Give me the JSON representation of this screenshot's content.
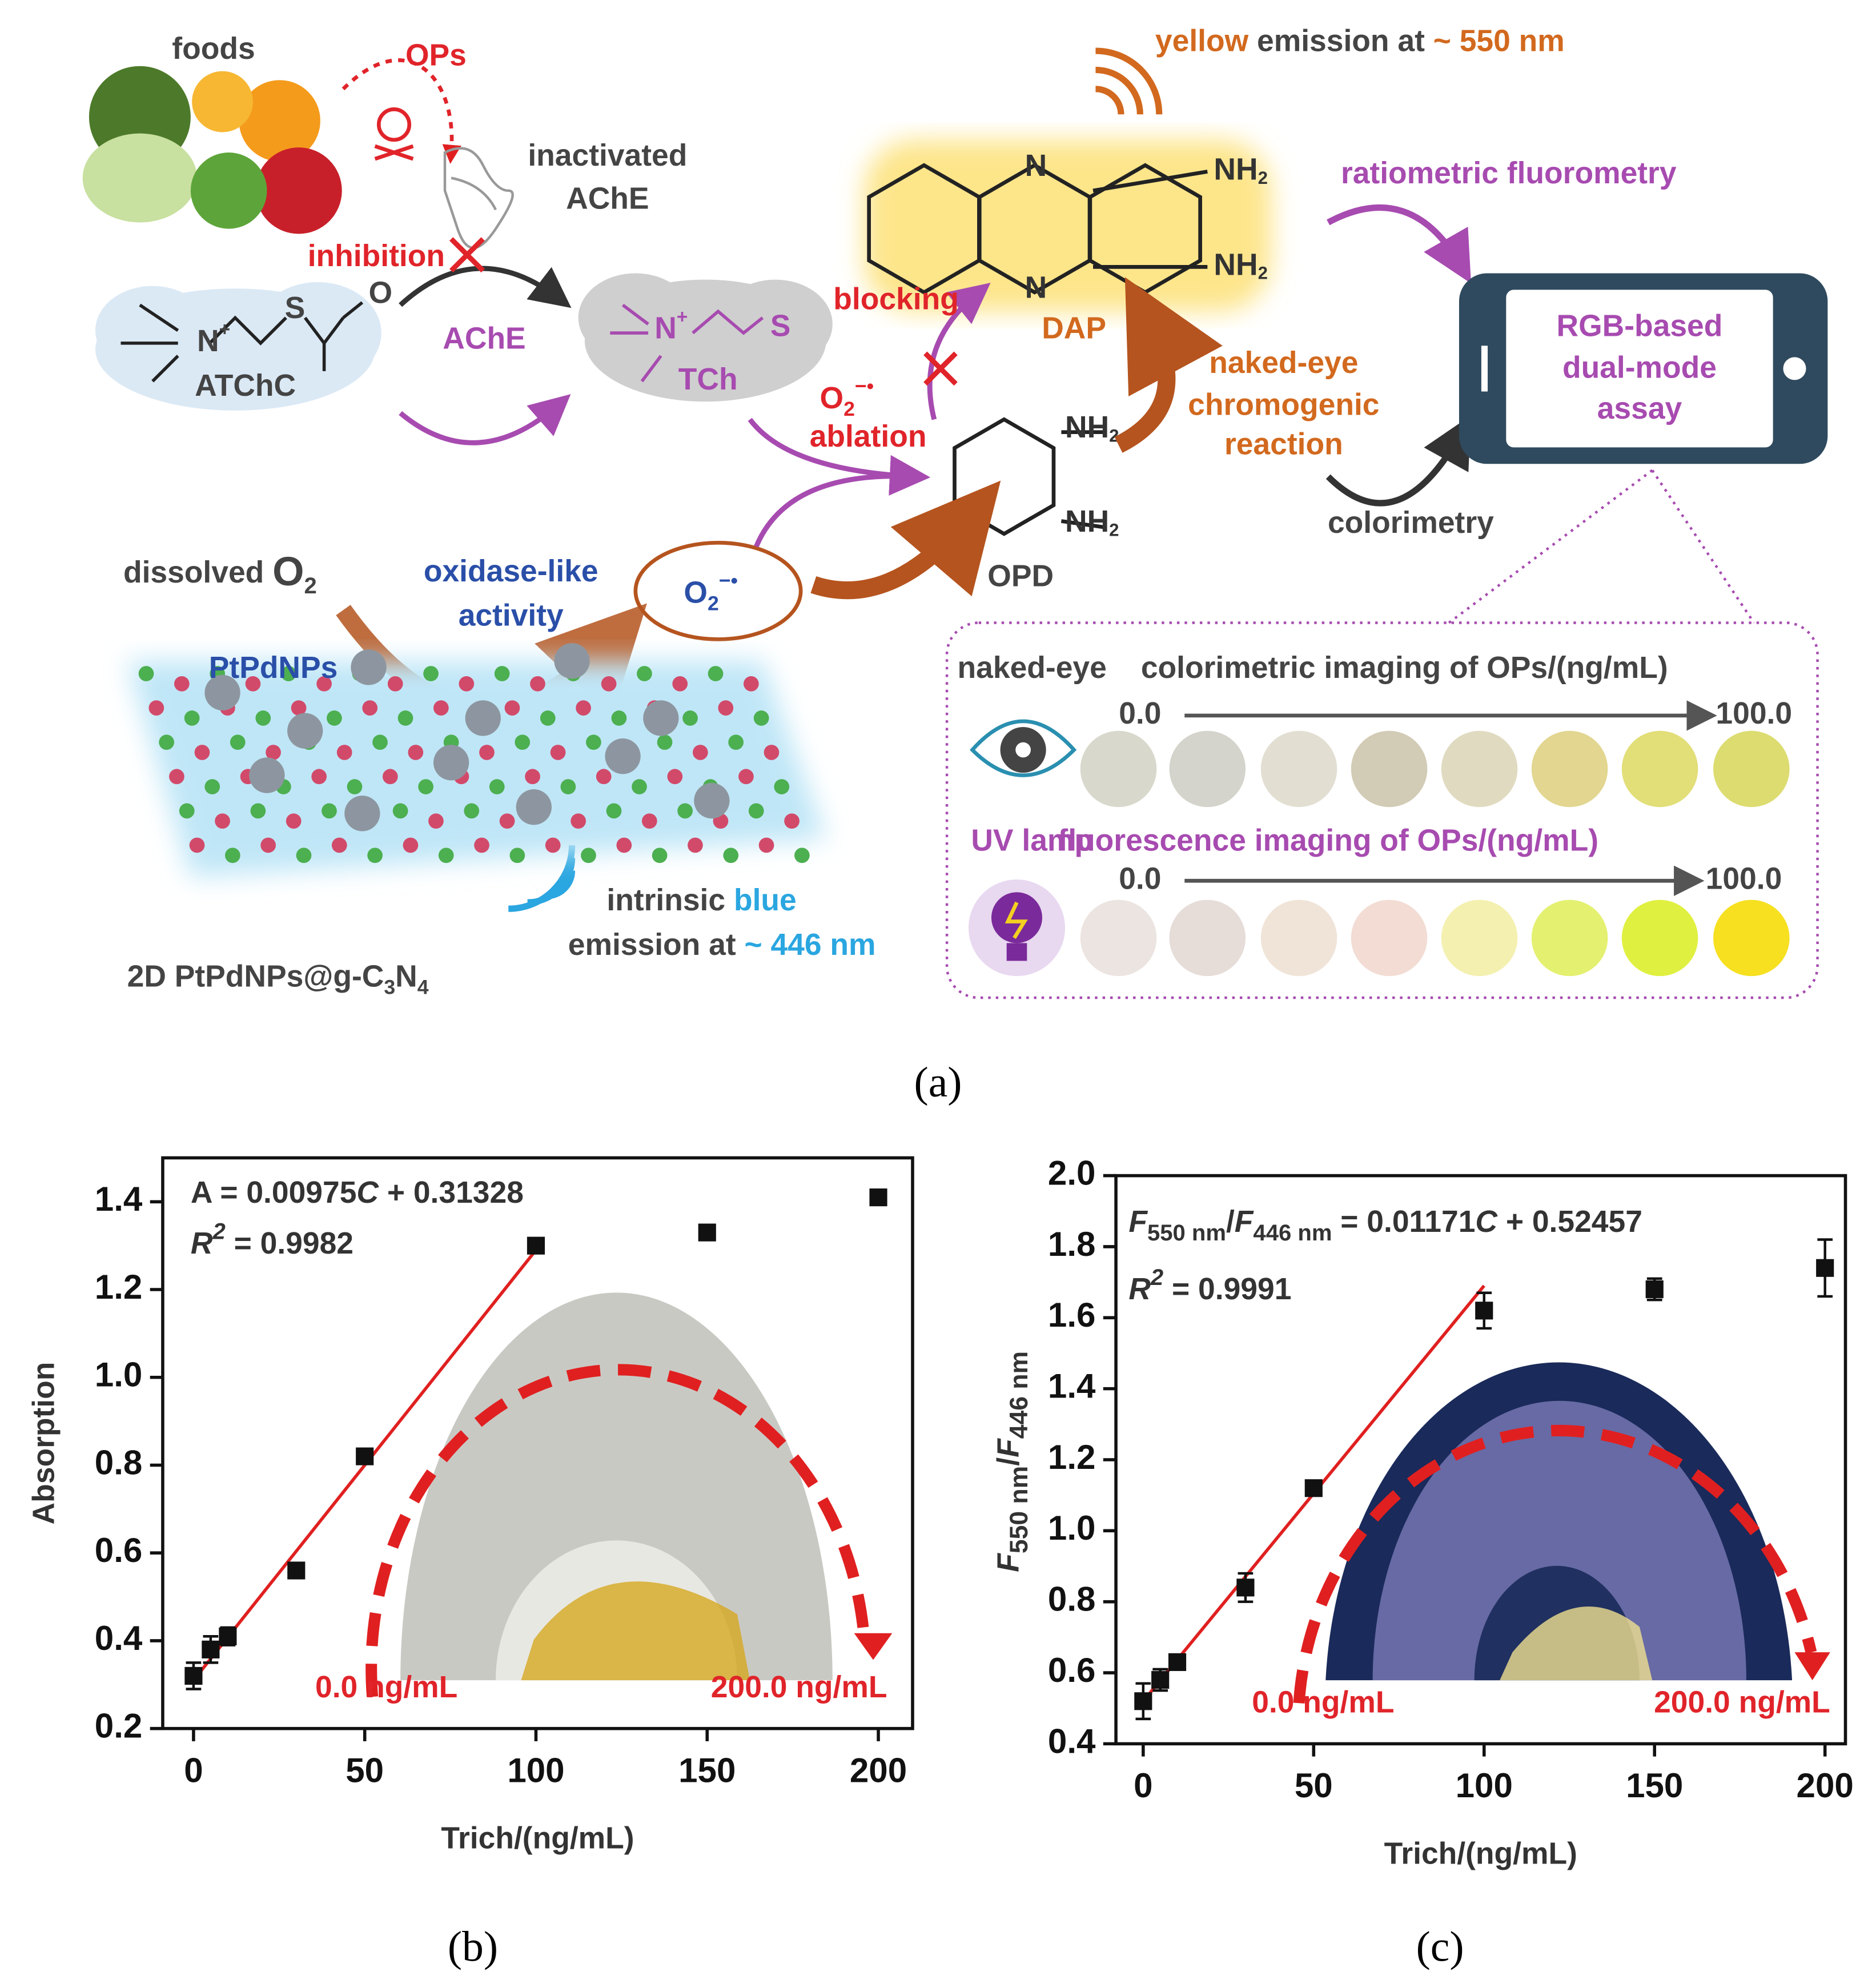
{
  "figure_a": {
    "foods": "foods",
    "ops": "OPs",
    "inactivated": [
      "inactivated",
      "AChE"
    ],
    "inhibition": "inhibition",
    "ache": "AChE",
    "atchc": "ATChC",
    "tch": "TCh",
    "blocking": "blocking",
    "superoxide_a": [
      "O",
      "2",
      "−•"
    ],
    "ablation": "ablation",
    "yellow_emission": [
      "yellow",
      "emission at",
      "~ 550 nm"
    ],
    "dap": "DAP",
    "ratiometric": "ratiometric fluorometry",
    "chromogenic": [
      "naked-eye",
      "chromogenic",
      "reaction"
    ],
    "phone": [
      "RGB-based",
      "dual-mode",
      "assay"
    ],
    "colorimetry": "colorimetry",
    "opd": "OPD",
    "dissolved": [
      "dissolved ",
      "O",
      "2"
    ],
    "oxidase": [
      "oxidase-like",
      "activity"
    ],
    "superoxide_b": [
      "O",
      "2",
      "−•"
    ],
    "ptpdnps": "PtPdNPs",
    "blue_emission": [
      "intrinsic ",
      "blue",
      "emission at ",
      "~ 446 nm"
    ],
    "material": [
      "2D PtPdNPs@g-C",
      "3",
      "N",
      "4"
    ],
    "colorimetric_row": {
      "icon_label": "naked-eye",
      "title": "colorimetric imaging of OPs/(ng/mL)",
      "start": "0.0",
      "end": "100.0"
    },
    "fluorescence_row": {
      "icon_label": "UV lamp",
      "title": "fluorescence imaging of OPs/(ng/mL)",
      "start": "0.0",
      "end": "100.0"
    },
    "chem": {
      "nh2": [
        "NH",
        "2"
      ],
      "n": "N",
      "s": "S",
      "o": "O",
      "n_plus": [
        "N",
        "+"
      ]
    }
  },
  "chart_data": [
    {
      "type": "scatter",
      "x_label": "Trich/(ng/mL)",
      "y_label": "Absorption",
      "x": [
        0,
        5,
        10,
        30,
        50,
        100,
        150,
        200
      ],
      "values": [
        0.32,
        0.38,
        0.41,
        0.56,
        0.82,
        1.3,
        1.33,
        1.41
      ],
      "errors": [
        0.03,
        0.03,
        0.02,
        0.01,
        0.01,
        0.01,
        0.01,
        0.01
      ],
      "color": "#111111",
      "xlim": [
        -9,
        210
      ],
      "ylim": [
        0.2,
        1.5
      ],
      "xticks": [
        0,
        50,
        100,
        150,
        200
      ],
      "yticks": [
        0.2,
        0.4,
        0.6,
        0.8,
        {
          "value": 1,
          "label": "1.0"
        },
        1.2,
        1.4
      ],
      "fit": {
        "x": [
          0,
          100
        ],
        "values": [
          0.31,
          1.29
        ],
        "color": "#e02020"
      },
      "equation": [
        "A = 0.00975",
        "C",
        " + 0.31328"
      ],
      "r_squared": [
        "R",
        "2",
        " = 0.9982"
      ],
      "range_labels": [
        "0.0 ng/mL",
        "200.0 ng/mL"
      ]
    },
    {
      "type": "scatter",
      "x_label": "Trich/(ng/mL)",
      "y_label": [
        "F",
        "550 nm",
        "/",
        "F",
        "446 nm"
      ],
      "x": [
        0,
        5,
        10,
        30,
        50,
        100,
        150,
        200
      ],
      "values": [
        0.52,
        0.58,
        0.63,
        0.84,
        1.12,
        1.62,
        1.68,
        1.74
      ],
      "errors": [
        0.05,
        0.03,
        0.02,
        0.04,
        0.01,
        0.05,
        0.03,
        0.08
      ],
      "color": "#111111",
      "xlim": [
        -8,
        206
      ],
      "ylim": [
        0.4,
        2.0
      ],
      "xticks": [
        0,
        50,
        100,
        150,
        200
      ],
      "yticks": [
        0.4,
        0.6,
        0.8,
        {
          "value": 1,
          "label": "1.0"
        },
        1.2,
        1.4,
        1.6,
        1.8,
        {
          "value": 2,
          "label": "2.0"
        }
      ],
      "fit": {
        "x": [
          0,
          100
        ],
        "values": [
          0.52,
          1.69
        ],
        "color": "#e02020"
      },
      "equation": [
        "F",
        "550 nm",
        "/",
        "F",
        "446 nm",
        " = 0.01171",
        "C",
        " + 0.52457"
      ],
      "r_squared": [
        "R",
        "2",
        " = 0.9991"
      ],
      "range_labels": [
        "0.0 ng/mL",
        "200.0 ng/mL"
      ]
    }
  ],
  "captions": [
    "(a)",
    "(b)",
    "(c)"
  ]
}
